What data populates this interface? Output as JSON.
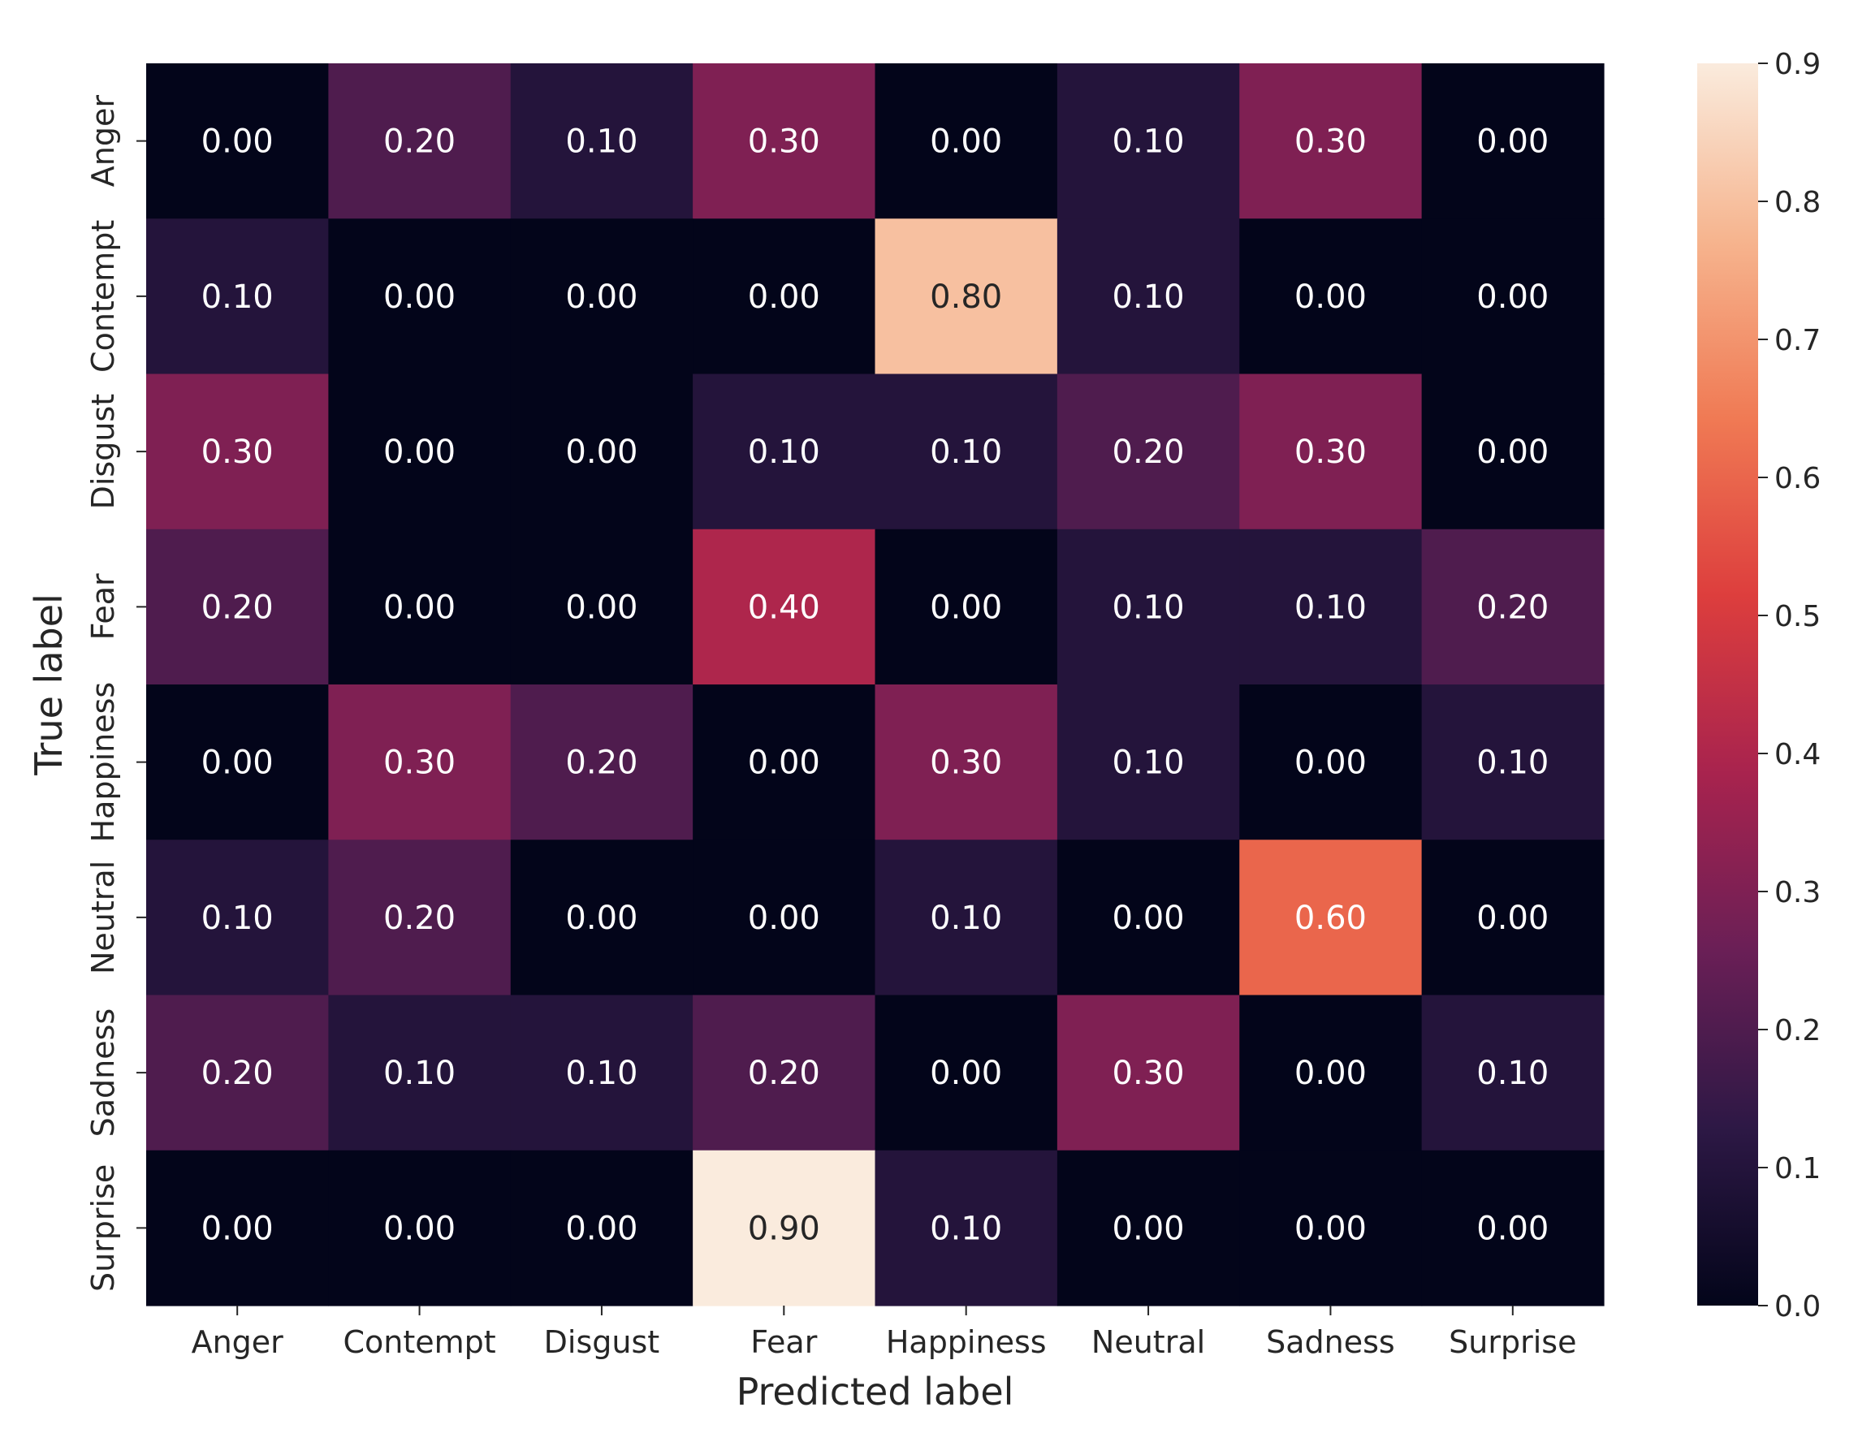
{
  "chart_data": {
    "type": "heatmap",
    "x_label": "Predicted label",
    "y_label": "True label",
    "x_categories": [
      "Anger",
      "Contempt",
      "Disgust",
      "Fear",
      "Happiness",
      "Neutral",
      "Sadness",
      "Surprise"
    ],
    "y_categories": [
      "Anger",
      "Contempt",
      "Disgust",
      "Fear",
      "Happiness",
      "Neutral",
      "Sadness",
      "Surprise"
    ],
    "values": [
      [
        0.0,
        0.2,
        0.1,
        0.3,
        0.0,
        0.1,
        0.3,
        0.0
      ],
      [
        0.1,
        0.0,
        0.0,
        0.0,
        0.8,
        0.1,
        0.0,
        0.0
      ],
      [
        0.3,
        0.0,
        0.0,
        0.1,
        0.1,
        0.2,
        0.3,
        0.0
      ],
      [
        0.2,
        0.0,
        0.0,
        0.4,
        0.0,
        0.1,
        0.1,
        0.2
      ],
      [
        0.0,
        0.3,
        0.2,
        0.0,
        0.3,
        0.1,
        0.0,
        0.1
      ],
      [
        0.1,
        0.2,
        0.0,
        0.0,
        0.1,
        0.0,
        0.6,
        0.0
      ],
      [
        0.2,
        0.1,
        0.1,
        0.2,
        0.0,
        0.3,
        0.0,
        0.1
      ],
      [
        0.0,
        0.0,
        0.0,
        0.9,
        0.1,
        0.0,
        0.0,
        0.0
      ]
    ],
    "value_range": [
      0.0,
      0.9
    ],
    "value_format": "2 decimals",
    "colorbar": {
      "ticks": [
        0.0,
        0.1,
        0.2,
        0.3,
        0.4,
        0.5,
        0.6,
        0.7,
        0.8,
        0.9
      ],
      "tick_labels": [
        "0.0",
        "0.1",
        "0.2",
        "0.3",
        "0.4",
        "0.5",
        "0.6",
        "0.7",
        "0.8",
        "0.9"
      ],
      "colormap": [
        "#03051a",
        "#2d1845",
        "#6a1f56",
        "#a8234e",
        "#dd3e3d",
        "#f07a54",
        "#f6b48e",
        "#faebdd"
      ]
    },
    "grid": false,
    "legend": "colorbar right"
  }
}
